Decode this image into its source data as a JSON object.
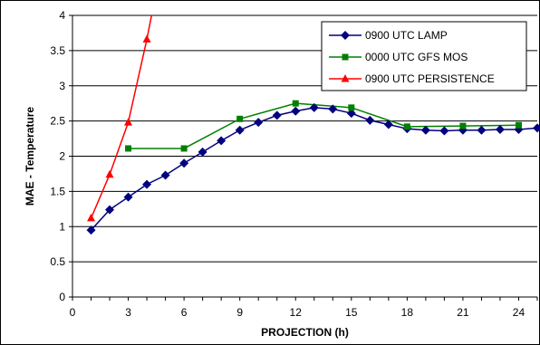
{
  "chart_data": {
    "type": "line",
    "title": "",
    "xlabel": "PROJECTION (h)",
    "ylabel": "MAE - Temperature",
    "xlim": [
      0,
      25
    ],
    "ylim": [
      0,
      4
    ],
    "xticks": [
      0,
      3,
      6,
      9,
      12,
      15,
      18,
      21,
      24
    ],
    "yticks": [
      0,
      0.5,
      1,
      1.5,
      2,
      2.5,
      3,
      3.5,
      4
    ],
    "ytick_labels": [
      "0",
      "0.5",
      "1",
      "1.5",
      "2",
      "2.5",
      "3",
      "3.5",
      "4"
    ],
    "grid": "horizontal",
    "legend_position": "top-right",
    "series": [
      {
        "name": "0900 UTC LAMP",
        "color": "#000080",
        "marker": "diamond",
        "x": [
          1,
          2,
          3,
          4,
          5,
          6,
          7,
          8,
          9,
          10,
          11,
          12,
          13,
          14,
          15,
          16,
          17,
          18,
          19,
          20,
          21,
          22,
          23,
          24,
          25
        ],
        "y": [
          0.95,
          1.24,
          1.42,
          1.6,
          1.73,
          1.9,
          2.06,
          2.22,
          2.37,
          2.48,
          2.58,
          2.64,
          2.69,
          2.67,
          2.61,
          2.51,
          2.45,
          2.39,
          2.37,
          2.36,
          2.37,
          2.37,
          2.38,
          2.38,
          2.4
        ]
      },
      {
        "name": "0000 UTC GFS MOS",
        "color": "#008000",
        "marker": "square",
        "x": [
          3,
          6,
          9,
          12,
          15,
          18,
          21,
          24
        ],
        "y": [
          2.11,
          2.11,
          2.53,
          2.75,
          2.69,
          2.42,
          2.43,
          2.44
        ]
      },
      {
        "name": "0900 UTC PERSISTENCE",
        "color": "#ff0000",
        "marker": "triangle",
        "x": [
          1,
          2,
          3,
          4,
          5
        ],
        "y": [
          1.12,
          1.74,
          2.48,
          3.66,
          5.0
        ]
      }
    ]
  }
}
